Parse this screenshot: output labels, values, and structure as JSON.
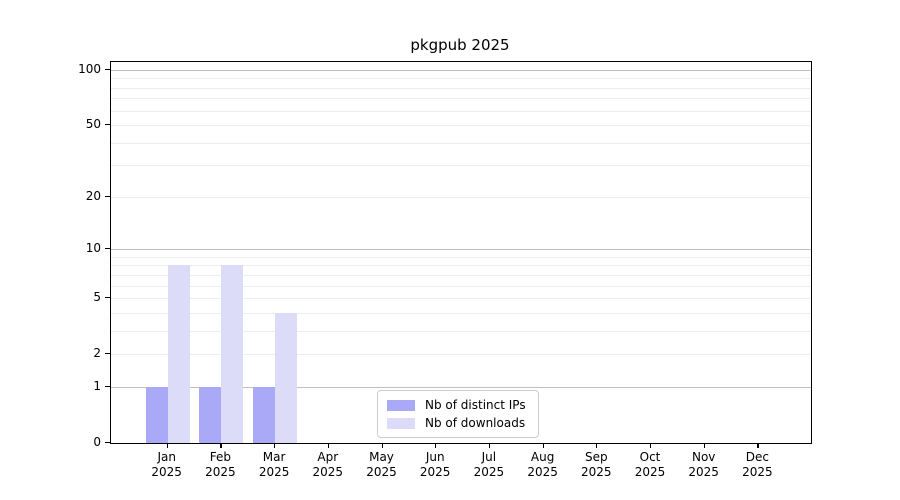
{
  "title": "pkgpub 2025",
  "chart_data": {
    "type": "bar",
    "title": "pkgpub 2025",
    "categories": [
      "Jan 2025",
      "Feb 2025",
      "Mar 2025",
      "Apr 2025",
      "May 2025",
      "Jun 2025",
      "Jul 2025",
      "Aug 2025",
      "Sep 2025",
      "Oct 2025",
      "Nov 2025",
      "Dec 2025"
    ],
    "x_tick_labels_line1": [
      "Jan",
      "Feb",
      "Mar",
      "Apr",
      "May",
      "Jun",
      "Jul",
      "Aug",
      "Sep",
      "Oct",
      "Nov",
      "Dec"
    ],
    "x_tick_labels_line2": [
      "2025",
      "2025",
      "2025",
      "2025",
      "2025",
      "2025",
      "2025",
      "2025",
      "2025",
      "2025",
      "2025",
      "2025"
    ],
    "series": [
      {
        "name": "Nb of distinct IPs",
        "color": "#a9a9f7",
        "values": [
          1,
          1,
          1,
          0,
          0,
          0,
          0,
          0,
          0,
          0,
          0,
          0
        ]
      },
      {
        "name": "Nb of downloads",
        "color": "#dcdcf8",
        "values": [
          8,
          8,
          4,
          0,
          0,
          0,
          0,
          0,
          0,
          0,
          0,
          0
        ]
      }
    ],
    "yscale": "log1p",
    "ylim": [
      0,
      100
    ],
    "y_labeled_ticks": [
      100,
      50,
      20,
      10,
      5,
      2,
      1,
      0
    ],
    "y_major_gridlines": [
      1,
      10,
      100
    ],
    "y_minor_gridlines": [
      2,
      3,
      4,
      5,
      6,
      7,
      8,
      9,
      20,
      30,
      40,
      50,
      60,
      70,
      80,
      90
    ],
    "grid": "on",
    "legend_position": "lower center",
    "xlabel": "",
    "ylabel": ""
  },
  "colors": {
    "background": "#ffffff",
    "spine": "#000000",
    "major_grid": "#c0c0c0",
    "minor_grid": "#ededed",
    "legend_border": "#cccccc",
    "bar_distinct_ips": "#a9a9f7",
    "bar_downloads": "#dcdcf8"
  }
}
